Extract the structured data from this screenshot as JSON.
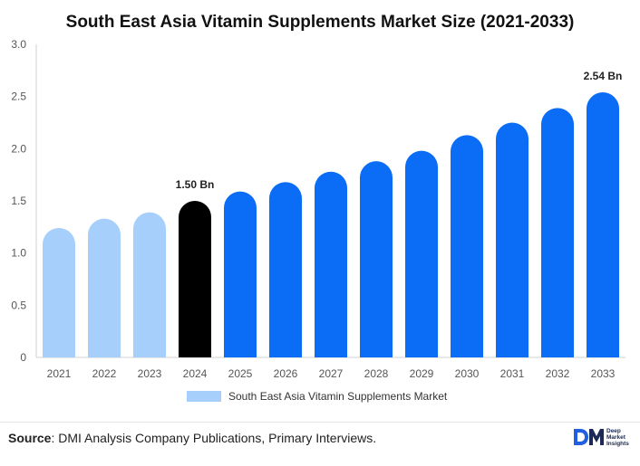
{
  "title": "South East Asia Vitamin Supplements Market Size (2021-2033)",
  "legend": {
    "label": "South East Asia Vitamin Supplements Market"
  },
  "source": {
    "label": "Source",
    "text": ": DMI Analysis Company Publications, Primary Interviews."
  },
  "logo": {
    "line1": "Deep",
    "line2": "Market",
    "line3": "Insights"
  },
  "colors": {
    "historical": "#a6cffb",
    "highlight": "#000000",
    "forecast": "#0b6cf5",
    "legend": "#a6cffb",
    "axis": "#d0d0d0",
    "label": "#555555"
  },
  "chart_data": {
    "type": "bar",
    "title": "South East Asia Vitamin Supplements Market Size (2021-2033)",
    "xlabel": "",
    "ylabel": "",
    "ylim": [
      0,
      3.0
    ],
    "yticks": [
      "0",
      "0.5",
      "1.0",
      "1.5",
      "2.0",
      "2.5",
      "3.0"
    ],
    "categories": [
      "2021",
      "2022",
      "2023",
      "2024",
      "2025",
      "2026",
      "2027",
      "2028",
      "2029",
      "2030",
      "2031",
      "2032",
      "2033"
    ],
    "series": [
      {
        "name": "South East Asia Vitamin Supplements Market",
        "values": [
          1.24,
          1.33,
          1.39,
          1.5,
          1.59,
          1.68,
          1.78,
          1.88,
          1.98,
          2.13,
          2.25,
          2.39,
          2.54
        ]
      }
    ],
    "bar_styles": [
      "historical",
      "historical",
      "historical",
      "highlight",
      "forecast",
      "forecast",
      "forecast",
      "forecast",
      "forecast",
      "forecast",
      "forecast",
      "forecast",
      "forecast"
    ],
    "data_labels": [
      {
        "index": 3,
        "text": "1.50 Bn"
      },
      {
        "index": 12,
        "text": "2.54 Bn"
      }
    ]
  }
}
